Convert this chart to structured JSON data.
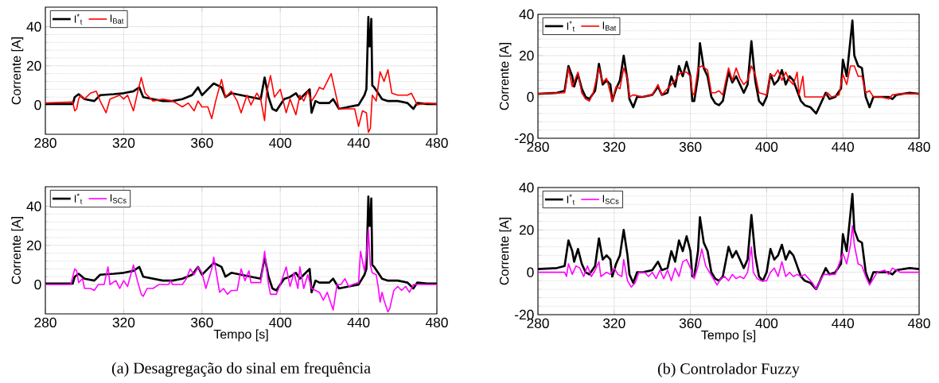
{
  "chart_data": [
    {
      "type": "line",
      "ylabel": "Corrente [A]",
      "xlim": [
        280,
        480
      ],
      "xticks": [
        280,
        320,
        360,
        400,
        440,
        480
      ],
      "ylim": [
        -15,
        50
      ],
      "yticks": [
        0,
        20,
        40
      ],
      "grid": true,
      "legend": "top left",
      "series": [
        {
          "name": "I$^{*}$$_{t}$",
          "color": "#000000",
          "x": [
            280,
            294,
            295,
            297,
            300,
            305,
            308,
            315,
            320,
            325,
            328,
            330,
            335,
            340,
            345,
            350,
            355,
            358,
            360,
            364,
            366,
            370,
            372,
            375,
            380,
            385,
            390,
            392,
            394,
            396,
            398,
            400,
            402,
            405,
            408,
            410,
            412,
            415,
            416,
            418,
            420,
            425,
            427,
            430,
            435,
            440,
            443,
            444,
            445,
            445.5,
            446,
            446.5,
            447,
            448,
            450,
            452,
            455,
            460,
            465,
            468,
            470,
            475,
            480
          ],
          "values": [
            0.5,
            0.5,
            4,
            5.5,
            3,
            2,
            5,
            5.5,
            6,
            7,
            9,
            4,
            3,
            2,
            2,
            3,
            5,
            9,
            5,
            9,
            11,
            9,
            4,
            6,
            5,
            4,
            3,
            14,
            4,
            -2,
            -3,
            0,
            3,
            4,
            6,
            3,
            5,
            8,
            -4,
            2,
            1,
            1,
            3,
            -2,
            -1,
            0,
            5,
            8,
            45,
            30,
            30,
            44,
            10,
            9,
            6,
            3,
            2,
            2,
            1,
            -2,
            1,
            0.5,
            0.5
          ]
        },
        {
          "name": "I$_{Bat}$",
          "color": "#ff0000",
          "x": [
            280,
            294,
            295,
            296,
            297,
            298,
            300,
            303,
            306,
            308,
            311,
            313,
            318,
            320,
            322,
            325,
            327,
            329,
            331,
            335,
            340,
            345,
            350,
            353,
            356,
            358,
            360,
            363,
            365,
            367,
            370,
            372,
            375,
            378,
            380,
            383,
            385,
            388,
            390,
            392,
            393,
            395,
            397,
            400,
            403,
            405,
            408,
            410,
            412,
            414,
            416,
            418,
            420,
            422,
            424,
            426,
            428,
            430,
            435,
            438,
            440,
            442,
            444,
            445,
            446,
            447,
            449,
            451,
            453,
            455,
            457,
            460,
            465,
            467,
            470,
            475,
            480
          ],
          "values": [
            1,
            1.5,
            -3,
            -2,
            3,
            5,
            3,
            6,
            7,
            2,
            -4,
            3,
            5,
            3,
            5,
            -3,
            6,
            14,
            6,
            2,
            3,
            2,
            -1,
            1,
            -3,
            2,
            -1,
            -1,
            -7,
            2,
            13,
            4,
            7,
            2,
            -4,
            5,
            0,
            6,
            3,
            -8,
            6,
            15,
            4,
            8,
            -4,
            3,
            -5,
            5,
            2,
            7,
            2,
            5,
            9,
            8,
            12,
            16,
            7,
            -2,
            -2,
            -2,
            -11,
            -3,
            -4,
            -14,
            -12,
            5,
            2,
            17,
            12,
            18,
            6,
            5,
            5,
            6,
            0,
            1,
            0.5
          ]
        }
      ]
    },
    {
      "type": "line",
      "ylabel": "Corrente [A]",
      "xlim": [
        280,
        480
      ],
      "xticks": [
        280,
        320,
        360,
        400,
        440,
        480
      ],
      "ylim": [
        -20,
        40
      ],
      "yticks": [
        -20,
        0,
        20,
        40
      ],
      "grid": true,
      "legend": "top left",
      "series": [
        {
          "name": "I$^{*}$$_{t}$",
          "color": "#000000",
          "x": [
            280,
            290,
            294,
            296,
            298,
            299,
            301,
            303,
            305,
            307,
            310,
            312,
            314,
            316,
            318,
            319,
            321,
            323,
            325,
            327,
            328,
            330,
            332,
            335,
            340,
            343,
            345,
            348,
            350,
            352,
            354,
            356,
            358,
            360,
            361,
            362,
            364,
            365,
            367,
            369,
            371,
            373,
            375,
            377,
            380,
            382,
            384,
            386,
            388,
            390,
            392,
            394,
            396,
            398,
            400,
            402,
            404,
            406,
            408,
            410,
            412,
            414,
            416,
            418,
            420,
            423,
            426,
            428,
            431,
            433,
            436,
            439,
            440,
            442,
            445,
            446,
            448,
            450,
            452,
            454,
            456,
            460,
            464,
            466,
            468,
            475,
            480
          ],
          "values": [
            1.5,
            2,
            3,
            15,
            10,
            5,
            11,
            4,
            0,
            -1,
            3,
            16,
            6,
            8,
            6,
            -2,
            4,
            8,
            20,
            8,
            -1,
            -5,
            0,
            0,
            1,
            5,
            1,
            2,
            10,
            5,
            15,
            10,
            17,
            10,
            -2,
            -2,
            10,
            26,
            14,
            10,
            0,
            -3,
            -4,
            -2,
            12,
            7,
            10,
            6,
            2,
            6,
            27,
            8,
            -2,
            -4,
            0,
            11,
            6,
            8,
            13,
            6,
            10,
            8,
            3,
            -2,
            -4,
            -5,
            -8,
            -4,
            2,
            -1,
            0,
            4,
            18,
            10,
            37,
            20,
            15,
            14,
            0,
            -5,
            0,
            0,
            0,
            -1,
            1,
            2,
            1.5
          ]
        },
        {
          "name": "I$_{Bat}$",
          "color": "#ff0000",
          "x": [
            280,
            294,
            296,
            298,
            301,
            303,
            305,
            307,
            309,
            312,
            314,
            316,
            318,
            319,
            321,
            323,
            325,
            327,
            328,
            330,
            335,
            340,
            343,
            345,
            350,
            352,
            354,
            356,
            358,
            360,
            361,
            362,
            364,
            366,
            369,
            371,
            373,
            375,
            377,
            380,
            382,
            384,
            386,
            388,
            390,
            392,
            394,
            396,
            400,
            402,
            404,
            406,
            408,
            410,
            412,
            414,
            416,
            417,
            419,
            420,
            430,
            432,
            434,
            438,
            440,
            442,
            444,
            446,
            448,
            450,
            452,
            454,
            456,
            460,
            464,
            466,
            470,
            480
          ],
          "values": [
            1.5,
            2,
            14,
            5,
            12,
            2,
            -1,
            -2,
            2,
            14,
            7,
            9,
            2,
            -2,
            5,
            4,
            14,
            9,
            0,
            1,
            0,
            1,
            6,
            1,
            6,
            8,
            11,
            12,
            12,
            10,
            2,
            1,
            14,
            15,
            13,
            2,
            2,
            3,
            1,
            14,
            8,
            14,
            9,
            6,
            8,
            15,
            11,
            2,
            1,
            11,
            10,
            13,
            8,
            12,
            8,
            6,
            12,
            1,
            10,
            0,
            0,
            2,
            0,
            1,
            11,
            6,
            15,
            15,
            10,
            10,
            2,
            3,
            0,
            0,
            -1,
            1,
            1.5,
            1.5
          ]
        }
      ]
    },
    {
      "type": "line",
      "ylabel": "Corrente [A]",
      "xlabel": "Tempo [s]",
      "annotations": [
        "(a) Desagregação do sinal em frequência"
      ],
      "xlim": [
        280,
        480
      ],
      "xticks": [
        280,
        320,
        360,
        400,
        440,
        480
      ],
      "ylim": [
        -15,
        50
      ],
      "yticks": [
        0,
        20,
        40
      ],
      "grid": true,
      "legend": "top left",
      "series": [
        {
          "name": "I$^{*}$$_{t}$",
          "color": "#000000",
          "x": [
            280,
            294,
            295,
            297,
            300,
            305,
            308,
            315,
            320,
            325,
            328,
            330,
            335,
            340,
            345,
            350,
            355,
            358,
            360,
            364,
            366,
            370,
            372,
            375,
            380,
            385,
            390,
            392,
            394,
            396,
            398,
            400,
            402,
            405,
            408,
            410,
            412,
            415,
            416,
            418,
            420,
            425,
            427,
            430,
            435,
            440,
            443,
            444,
            445,
            445.5,
            446,
            446.5,
            447,
            448,
            450,
            452,
            455,
            460,
            465,
            468,
            470,
            475,
            480
          ],
          "values": [
            0.5,
            0.5,
            4,
            5.5,
            3,
            2,
            5,
            5.5,
            6,
            7,
            9,
            4,
            3,
            2,
            2,
            3,
            5,
            9,
            5,
            9,
            11,
            9,
            4,
            6,
            5,
            4,
            3,
            14,
            4,
            -2,
            -3,
            0,
            3,
            4,
            6,
            3,
            5,
            8,
            -4,
            2,
            1,
            1,
            3,
            -2,
            -1,
            0,
            5,
            8,
            45,
            30,
            30,
            44,
            10,
            9,
            6,
            3,
            2,
            2,
            1,
            -2,
            1,
            0.5,
            0.5
          ]
        },
        {
          "name": "I$_{SCs}$",
          "color": "#ff00ff",
          "x": [
            280,
            293,
            295,
            296,
            297,
            299,
            300,
            303,
            305,
            307,
            310,
            312,
            313,
            316,
            318,
            320,
            322,
            325,
            327,
            329,
            330,
            332,
            335,
            338,
            343,
            344,
            345,
            350,
            352,
            354,
            356,
            358,
            360,
            362,
            365,
            366,
            367,
            369,
            371,
            373,
            375,
            378,
            380,
            382,
            384,
            385,
            390,
            392,
            393,
            394,
            395,
            397,
            398,
            400,
            403,
            405,
            407,
            409,
            410,
            412,
            414,
            416,
            418,
            420,
            422,
            424,
            426,
            427,
            429,
            431,
            433,
            435,
            437,
            440,
            441,
            443,
            444,
            445,
            446,
            447,
            449,
            450,
            451,
            452,
            453,
            455,
            456,
            458,
            460,
            462,
            464,
            466,
            468,
            470,
            480
          ],
          "values": [
            0,
            0,
            8,
            7,
            1,
            3,
            -2,
            -2,
            -3,
            0,
            0,
            9,
            0,
            2,
            -2,
            2,
            -1,
            10,
            2,
            -5,
            -6,
            -2,
            -2,
            0,
            0,
            2,
            0,
            0,
            3,
            8,
            5,
            9,
            6,
            -2,
            8,
            14,
            8,
            -4,
            -2,
            -5,
            -3,
            -3,
            8,
            2,
            7,
            1,
            1,
            17,
            8,
            0,
            -5,
            -5,
            -5,
            0,
            9,
            -1,
            6,
            -2,
            9,
            -2,
            5,
            -2,
            -3,
            -4,
            -8,
            -4,
            -10,
            -13,
            0,
            0,
            3,
            -1,
            0,
            1,
            17,
            7,
            15,
            28,
            10,
            6,
            5,
            -1,
            -9,
            -4,
            -8,
            -14,
            -12,
            -3,
            -1,
            -3,
            -1,
            -4,
            0,
            0,
            0
          ]
        }
      ]
    },
    {
      "type": "line",
      "ylabel": "Corrente [A]",
      "xlabel": "Tempo [s]",
      "annotations": [
        "(b) Controlador Fuzzy"
      ],
      "xlim": [
        280,
        480
      ],
      "xticks": [
        280,
        320,
        360,
        400,
        440,
        480
      ],
      "ylim": [
        -20,
        40
      ],
      "yticks": [
        -20,
        0,
        20,
        40
      ],
      "grid": true,
      "legend": "top left",
      "series": [
        {
          "name": "I$^{*}$$_{t}$",
          "color": "#000000",
          "x": [
            280,
            290,
            294,
            296,
            298,
            299,
            301,
            303,
            305,
            307,
            310,
            312,
            314,
            316,
            318,
            319,
            321,
            323,
            325,
            327,
            328,
            330,
            332,
            335,
            340,
            343,
            345,
            348,
            350,
            352,
            354,
            356,
            358,
            360,
            361,
            362,
            364,
            365,
            367,
            369,
            371,
            373,
            375,
            377,
            380,
            382,
            384,
            386,
            388,
            390,
            392,
            394,
            396,
            398,
            400,
            402,
            404,
            406,
            408,
            410,
            412,
            414,
            416,
            418,
            420,
            423,
            426,
            428,
            431,
            433,
            436,
            439,
            440,
            442,
            445,
            446,
            448,
            450,
            452,
            454,
            456,
            460,
            464,
            466,
            468,
            475,
            480
          ],
          "values": [
            1.5,
            2,
            3,
            15,
            10,
            5,
            11,
            4,
            0,
            -1,
            3,
            16,
            6,
            8,
            6,
            -2,
            4,
            8,
            20,
            8,
            -1,
            -5,
            0,
            0,
            1,
            5,
            1,
            2,
            10,
            5,
            15,
            10,
            17,
            10,
            -2,
            -2,
            10,
            26,
            14,
            10,
            0,
            -3,
            -4,
            -2,
            12,
            7,
            10,
            6,
            2,
            6,
            27,
            8,
            -2,
            -4,
            0,
            11,
            6,
            8,
            13,
            6,
            10,
            8,
            3,
            -2,
            -4,
            -5,
            -8,
            -4,
            2,
            -1,
            0,
            4,
            18,
            10,
            37,
            20,
            15,
            14,
            0,
            -5,
            0,
            0,
            0,
            -1,
            1,
            2,
            1.5
          ]
        },
        {
          "name": "I$_{SCs}$",
          "color": "#ff00ff",
          "x": [
            280,
            294,
            295,
            296,
            298,
            300,
            302,
            304,
            306,
            308,
            310,
            312,
            313,
            316,
            318,
            320,
            322,
            324,
            325,
            327,
            329,
            331,
            333,
            336,
            338,
            340,
            342,
            344,
            346,
            348,
            350,
            352,
            354,
            356,
            358,
            360,
            362,
            364,
            366,
            368,
            370,
            372,
            374,
            376,
            378,
            380,
            382,
            384,
            386,
            388,
            390,
            392,
            393,
            395,
            397,
            400,
            402,
            404,
            406,
            408,
            410,
            412,
            414,
            416,
            418,
            420,
            422,
            424,
            426,
            428,
            430,
            432,
            436,
            440,
            442,
            444,
            445,
            446,
            448,
            450,
            452,
            454,
            456,
            458,
            462,
            464,
            466,
            470,
            480
          ],
          "values": [
            0,
            0,
            -2,
            4,
            -1,
            3,
            2,
            -2,
            3,
            -2,
            1,
            5,
            -2,
            0,
            -1,
            2,
            -1,
            -2,
            6,
            -4,
            -7,
            -5,
            0,
            0,
            -2,
            0,
            -3,
            1,
            -3,
            1,
            -4,
            2,
            -2,
            5,
            6,
            2,
            -3,
            3,
            11,
            3,
            0,
            -3,
            -6,
            -3,
            -2,
            -4,
            -1,
            -3,
            -2,
            -3,
            0,
            12,
            0,
            -3,
            -4,
            -4,
            0,
            2,
            -2,
            5,
            -2,
            0,
            -2,
            -1,
            -2,
            -1,
            -3,
            -5,
            -8,
            -4,
            -1,
            -1,
            -1,
            9,
            4,
            13,
            22,
            13,
            4,
            3,
            -2,
            -6,
            -3,
            0,
            1,
            -1,
            2,
            0,
            0
          ]
        }
      ]
    }
  ]
}
